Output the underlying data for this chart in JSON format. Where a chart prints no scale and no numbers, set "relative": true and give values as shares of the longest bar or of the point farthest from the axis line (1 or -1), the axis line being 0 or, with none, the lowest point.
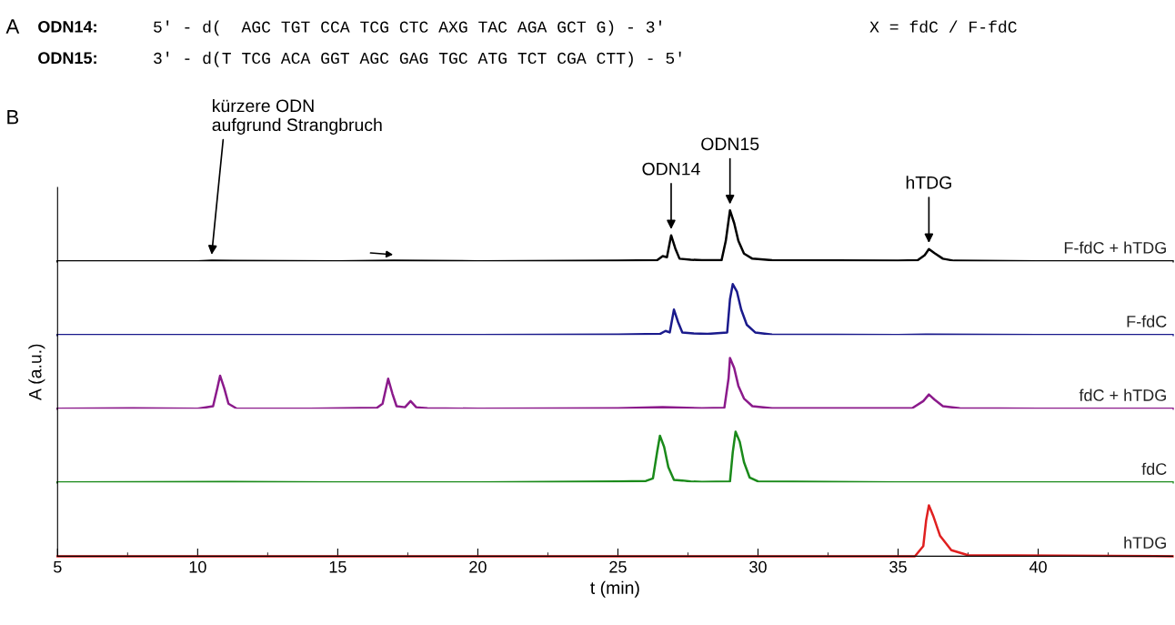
{
  "chart_data": [
    {
      "type": "line",
      "relative": true,
      "xlim": [
        5,
        44.8
      ],
      "tick_labels": false,
      "grid": false,
      "annotations": [
        "A",
        "ODN14:",
        "5' - d(  AGC TGT CCA TCG CTC AXG TAC AGA GCT G) - 3'",
        "X = fdC / F-fdC",
        "ODN15:",
        "3' - d(T TCG ACA GGT AGC GAG TGC ATG TCT CGA CTT) - 5'",
        "B",
        {
          "text": "kürzere ODN\naufgrund Strangbruch",
          "x": 10.5,
          "y": 0.01
        },
        {
          "text": "ODN14",
          "x": 26.9,
          "y": 0.51
        },
        {
          "text": "ODN15",
          "x": 29.0,
          "y": 1
        },
        {
          "text": "hTDG",
          "x": 36.1,
          "y": 0.24
        }
      ],
      "series": [
        {
          "name": "F-fdC + hTDG",
          "color": "#000000",
          "x": [
            5,
            10,
            10.5,
            15,
            17,
            20,
            25,
            26.4,
            26.6,
            26.75,
            26.9,
            27.05,
            27.2,
            27.6,
            28,
            28.7,
            28.85,
            29.0,
            29.15,
            29.3,
            29.5,
            29.8,
            30.5,
            35,
            35.7,
            35.95,
            36.1,
            36.3,
            36.6,
            37,
            40,
            44.8
          ],
          "values": [
            0,
            0,
            0.01,
            0,
            0.01,
            0,
            0.01,
            0.02,
            0.1,
            0.08,
            0.51,
            0.25,
            0.05,
            0.03,
            0.02,
            0.02,
            0.4,
            1,
            0.75,
            0.4,
            0.15,
            0.05,
            0.02,
            0.01,
            0.02,
            0.12,
            0.24,
            0.16,
            0.05,
            0.01,
            0,
            0
          ]
        }
      ]
    },
    {
      "type": "line",
      "relative": true,
      "xlim": [
        5,
        44.8
      ],
      "tick_labels": false,
      "grid": false,
      "series": [
        {
          "name": "F-fdC",
          "color": "#1a1a8c",
          "x": [
            5,
            15,
            20,
            25,
            26.5,
            26.7,
            26.85,
            27.0,
            27.15,
            27.3,
            27.7,
            28.2,
            28.9,
            29.0,
            29.1,
            29.25,
            29.4,
            29.6,
            29.9,
            30.5,
            35,
            36.1,
            40,
            44.8
          ],
          "values": [
            0,
            0,
            0,
            0.01,
            0.02,
            0.08,
            0.05,
            0.5,
            0.25,
            0.05,
            0.03,
            0.02,
            0.05,
            0.7,
            1,
            0.85,
            0.5,
            0.2,
            0.05,
            0.01,
            0,
            0.01,
            0,
            0
          ]
        }
      ]
    },
    {
      "type": "line",
      "relative": true,
      "xlim": [
        5,
        44.8
      ],
      "tick_labels": false,
      "grid": false,
      "ylabel": "A (a.u.)",
      "series": [
        {
          "name": "fdC + hTDG",
          "color": "#8b1a8b",
          "x": [
            5,
            7.7,
            10,
            10.55,
            10.7,
            10.8,
            10.95,
            11.1,
            11.4,
            14,
            16.4,
            16.6,
            16.8,
            16.95,
            17.1,
            17.4,
            17.6,
            17.8,
            18.2,
            20,
            25,
            26.6,
            28,
            28.8,
            28.95,
            29.0,
            29.15,
            29.3,
            29.5,
            29.8,
            30.5,
            35.5,
            35.9,
            36.1,
            36.3,
            36.6,
            37.2,
            40,
            44.8
          ],
          "values": [
            0,
            0.01,
            0,
            0.05,
            0.4,
            0.65,
            0.4,
            0.1,
            0,
            0,
            0.02,
            0.1,
            0.59,
            0.3,
            0.05,
            0.03,
            0.15,
            0.03,
            0.01,
            0,
            0.01,
            0.03,
            0.01,
            0.02,
            0.6,
            1,
            0.8,
            0.45,
            0.2,
            0.05,
            0.01,
            0.01,
            0.15,
            0.28,
            0.18,
            0.05,
            0.01,
            0,
            0
          ]
        }
      ]
    },
    {
      "type": "line",
      "relative": true,
      "xlim": [
        5,
        44.8
      ],
      "tick_labels": false,
      "grid": false,
      "series": [
        {
          "name": "fdC",
          "color": "#1a8a1a",
          "x": [
            5,
            11,
            15,
            20,
            25,
            26,
            26.25,
            26.4,
            26.5,
            26.65,
            26.8,
            27,
            27.3,
            27.6,
            28,
            29.0,
            29.1,
            29.2,
            29.35,
            29.5,
            29.7,
            30,
            35,
            40,
            44.8
          ],
          "values": [
            0,
            0.01,
            0,
            0,
            0.02,
            0.03,
            0.08,
            0.6,
            0.92,
            0.7,
            0.3,
            0.05,
            0.04,
            0.02,
            0.01,
            0.02,
            0.6,
            1,
            0.8,
            0.4,
            0.1,
            0.02,
            0,
            0,
            0
          ]
        }
      ]
    },
    {
      "type": "line",
      "relative": true,
      "xlim": [
        5,
        44.8
      ],
      "xticks": [
        5,
        10,
        15,
        20,
        25,
        30,
        35,
        40
      ],
      "tick_labels": "x",
      "xlabel": "t (min)",
      "grid": false,
      "series": [
        {
          "name": "hTDG",
          "color": "#e02020",
          "x": [
            5,
            20,
            35.6,
            35.9,
            36.0,
            36.1,
            36.25,
            36.5,
            36.9,
            37.5,
            44.8
          ],
          "values": [
            0,
            0,
            0,
            0.2,
            0.7,
            1,
            0.8,
            0.4,
            0.12,
            0.02,
            0
          ]
        }
      ]
    }
  ]
}
